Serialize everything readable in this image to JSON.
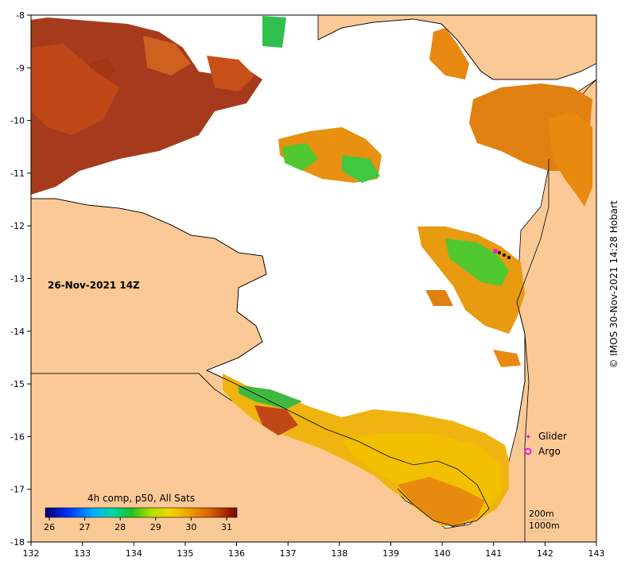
{
  "map": {
    "date_label": "26-Nov-2021 14Z",
    "credit": "© IMOS 30-Nov-2021 14:28 Hobart",
    "colors": {
      "land": "#fbc995",
      "no_data": "#ffffff",
      "coast": "#000000"
    },
    "x_ticks": [
      "132",
      "133",
      "134",
      "135",
      "136",
      "137",
      "138",
      "139",
      "140",
      "141",
      "142",
      "143"
    ],
    "y_ticks": [
      "-8",
      "-9",
      "-10",
      "-11",
      "-12",
      "-13",
      "-14",
      "-15",
      "-16",
      "-17",
      "-18"
    ],
    "legend": {
      "glider_label": "Glider",
      "argo_label": "Argo",
      "marker_color": "#e020e0"
    },
    "colorbar": {
      "title": "4h comp, p50, All Sats",
      "ticks": [
        "26",
        "27",
        "28",
        "29",
        "30",
        "31"
      ],
      "colors": [
        "#000080",
        "#0040ff",
        "#00b0ff",
        "#00e0a0",
        "#20c020",
        "#a0e000",
        "#f0e000",
        "#f0b000",
        "#e07000",
        "#c04000",
        "#800000"
      ]
    },
    "depth_contours": {
      "label_200": "200m",
      "label_1000": "1000m"
    }
  }
}
